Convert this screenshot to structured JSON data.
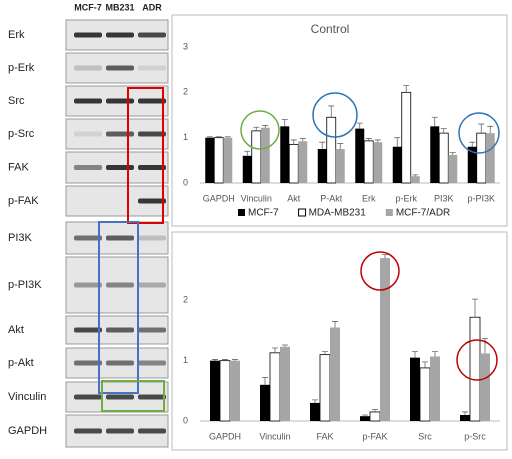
{
  "blot": {
    "columns": [
      "MCF-7",
      "MB231",
      "ADR"
    ],
    "rows": [
      "Erk",
      "p-Erk",
      "Src",
      "p-Src",
      "FAK",
      "p-FAK",
      "PI3K",
      "p-PI3K",
      "Akt",
      "p-Akt",
      "Vinculin",
      "GAPDH"
    ]
  },
  "chart_data": [
    {
      "type": "bar",
      "title": "Control",
      "categories": [
        "GAPDH",
        "Vinculin",
        "Akt",
        "P-Akt",
        "Erk",
        "p-Erk",
        "PI3K",
        "p-PI3K"
      ],
      "series": [
        {
          "name": "MCF-7",
          "color": "#000000",
          "values": [
            1,
            0.6,
            1.25,
            0.75,
            1.2,
            0.8,
            1.25,
            0.8
          ],
          "errors": [
            0.02,
            0.1,
            0.15,
            0.15,
            0.12,
            0.2,
            0.2,
            0.1
          ]
        },
        {
          "name": "MDA-MB231",
          "color": "#ffffff",
          "values": [
            1,
            1.15,
            0.85,
            1.45,
            0.93,
            2.0,
            1.1,
            1.1
          ],
          "errors": [
            0.02,
            0.08,
            0.1,
            0.25,
            0.05,
            0.15,
            0.1,
            0.2
          ]
        },
        {
          "name": "MCF-7/ADR",
          "color": "#a6a6a6",
          "values": [
            1,
            1.22,
            0.92,
            0.75,
            0.9,
            0.15,
            0.62,
            1.1
          ],
          "errors": [
            0.02,
            0.05,
            0.06,
            0.12,
            0.05,
            0.03,
            0.05,
            0.15
          ]
        }
      ],
      "ylim": [
        0,
        3
      ],
      "yticks": [
        0,
        1,
        2,
        3
      ],
      "legend": "bottom"
    },
    {
      "type": "bar",
      "categories": [
        "GAPDH",
        "Vinculin",
        "FAK",
        "p-FAK",
        "Src",
        "p-Src"
      ],
      "series": [
        {
          "color": "#000000",
          "values": [
            1,
            0.6,
            0.3,
            0.08,
            1.05,
            0.1
          ],
          "errors": [
            0.02,
            0.12,
            0.05,
            0.02,
            0.1,
            0.05
          ]
        },
        {
          "color": "#ffffff",
          "values": [
            1,
            1.13,
            1.1,
            0.15,
            0.88,
            1.72
          ],
          "errors": [
            0.02,
            0.08,
            0.05,
            0.04,
            0.1,
            0.3
          ]
        },
        {
          "color": "#a6a6a6",
          "values": [
            1,
            1.23,
            1.55,
            2.7,
            1.07,
            1.12
          ],
          "errors": [
            0.02,
            0.03,
            0.1,
            0.06,
            0.08,
            0.25
          ]
        }
      ],
      "ylim": [
        0,
        3
      ],
      "yticks": [
        0,
        1,
        2
      ]
    }
  ]
}
